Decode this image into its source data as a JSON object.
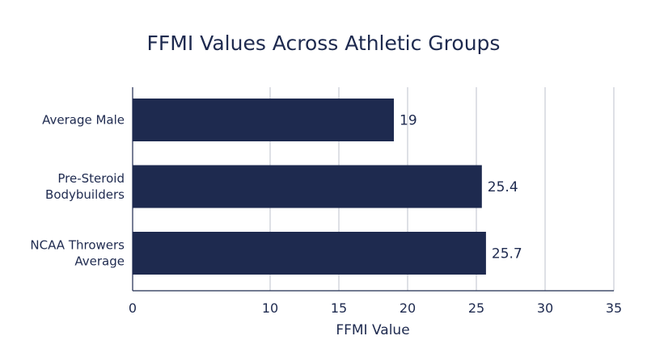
{
  "chart_data": {
    "type": "bar",
    "orientation": "horizontal",
    "title": "FFMI Values Across Athletic Groups",
    "xlabel": "FFMI Value",
    "ylabel": "",
    "categories": [
      [
        "Average Male"
      ],
      [
        "Pre-Steroid",
        "Bodybuilders"
      ],
      [
        "NCAA Throwers",
        "Average"
      ]
    ],
    "values": [
      19,
      25.4,
      25.7
    ],
    "data_labels": [
      "19",
      "25.4",
      "25.7"
    ],
    "xlim": [
      0,
      35
    ],
    "xticks": [
      0,
      10,
      15,
      20,
      25,
      30,
      35
    ],
    "grid": "vertical",
    "bar_color": "#1e2a4f",
    "text_color": "#1e2a4f",
    "grid_color": "#c8ccd4"
  }
}
